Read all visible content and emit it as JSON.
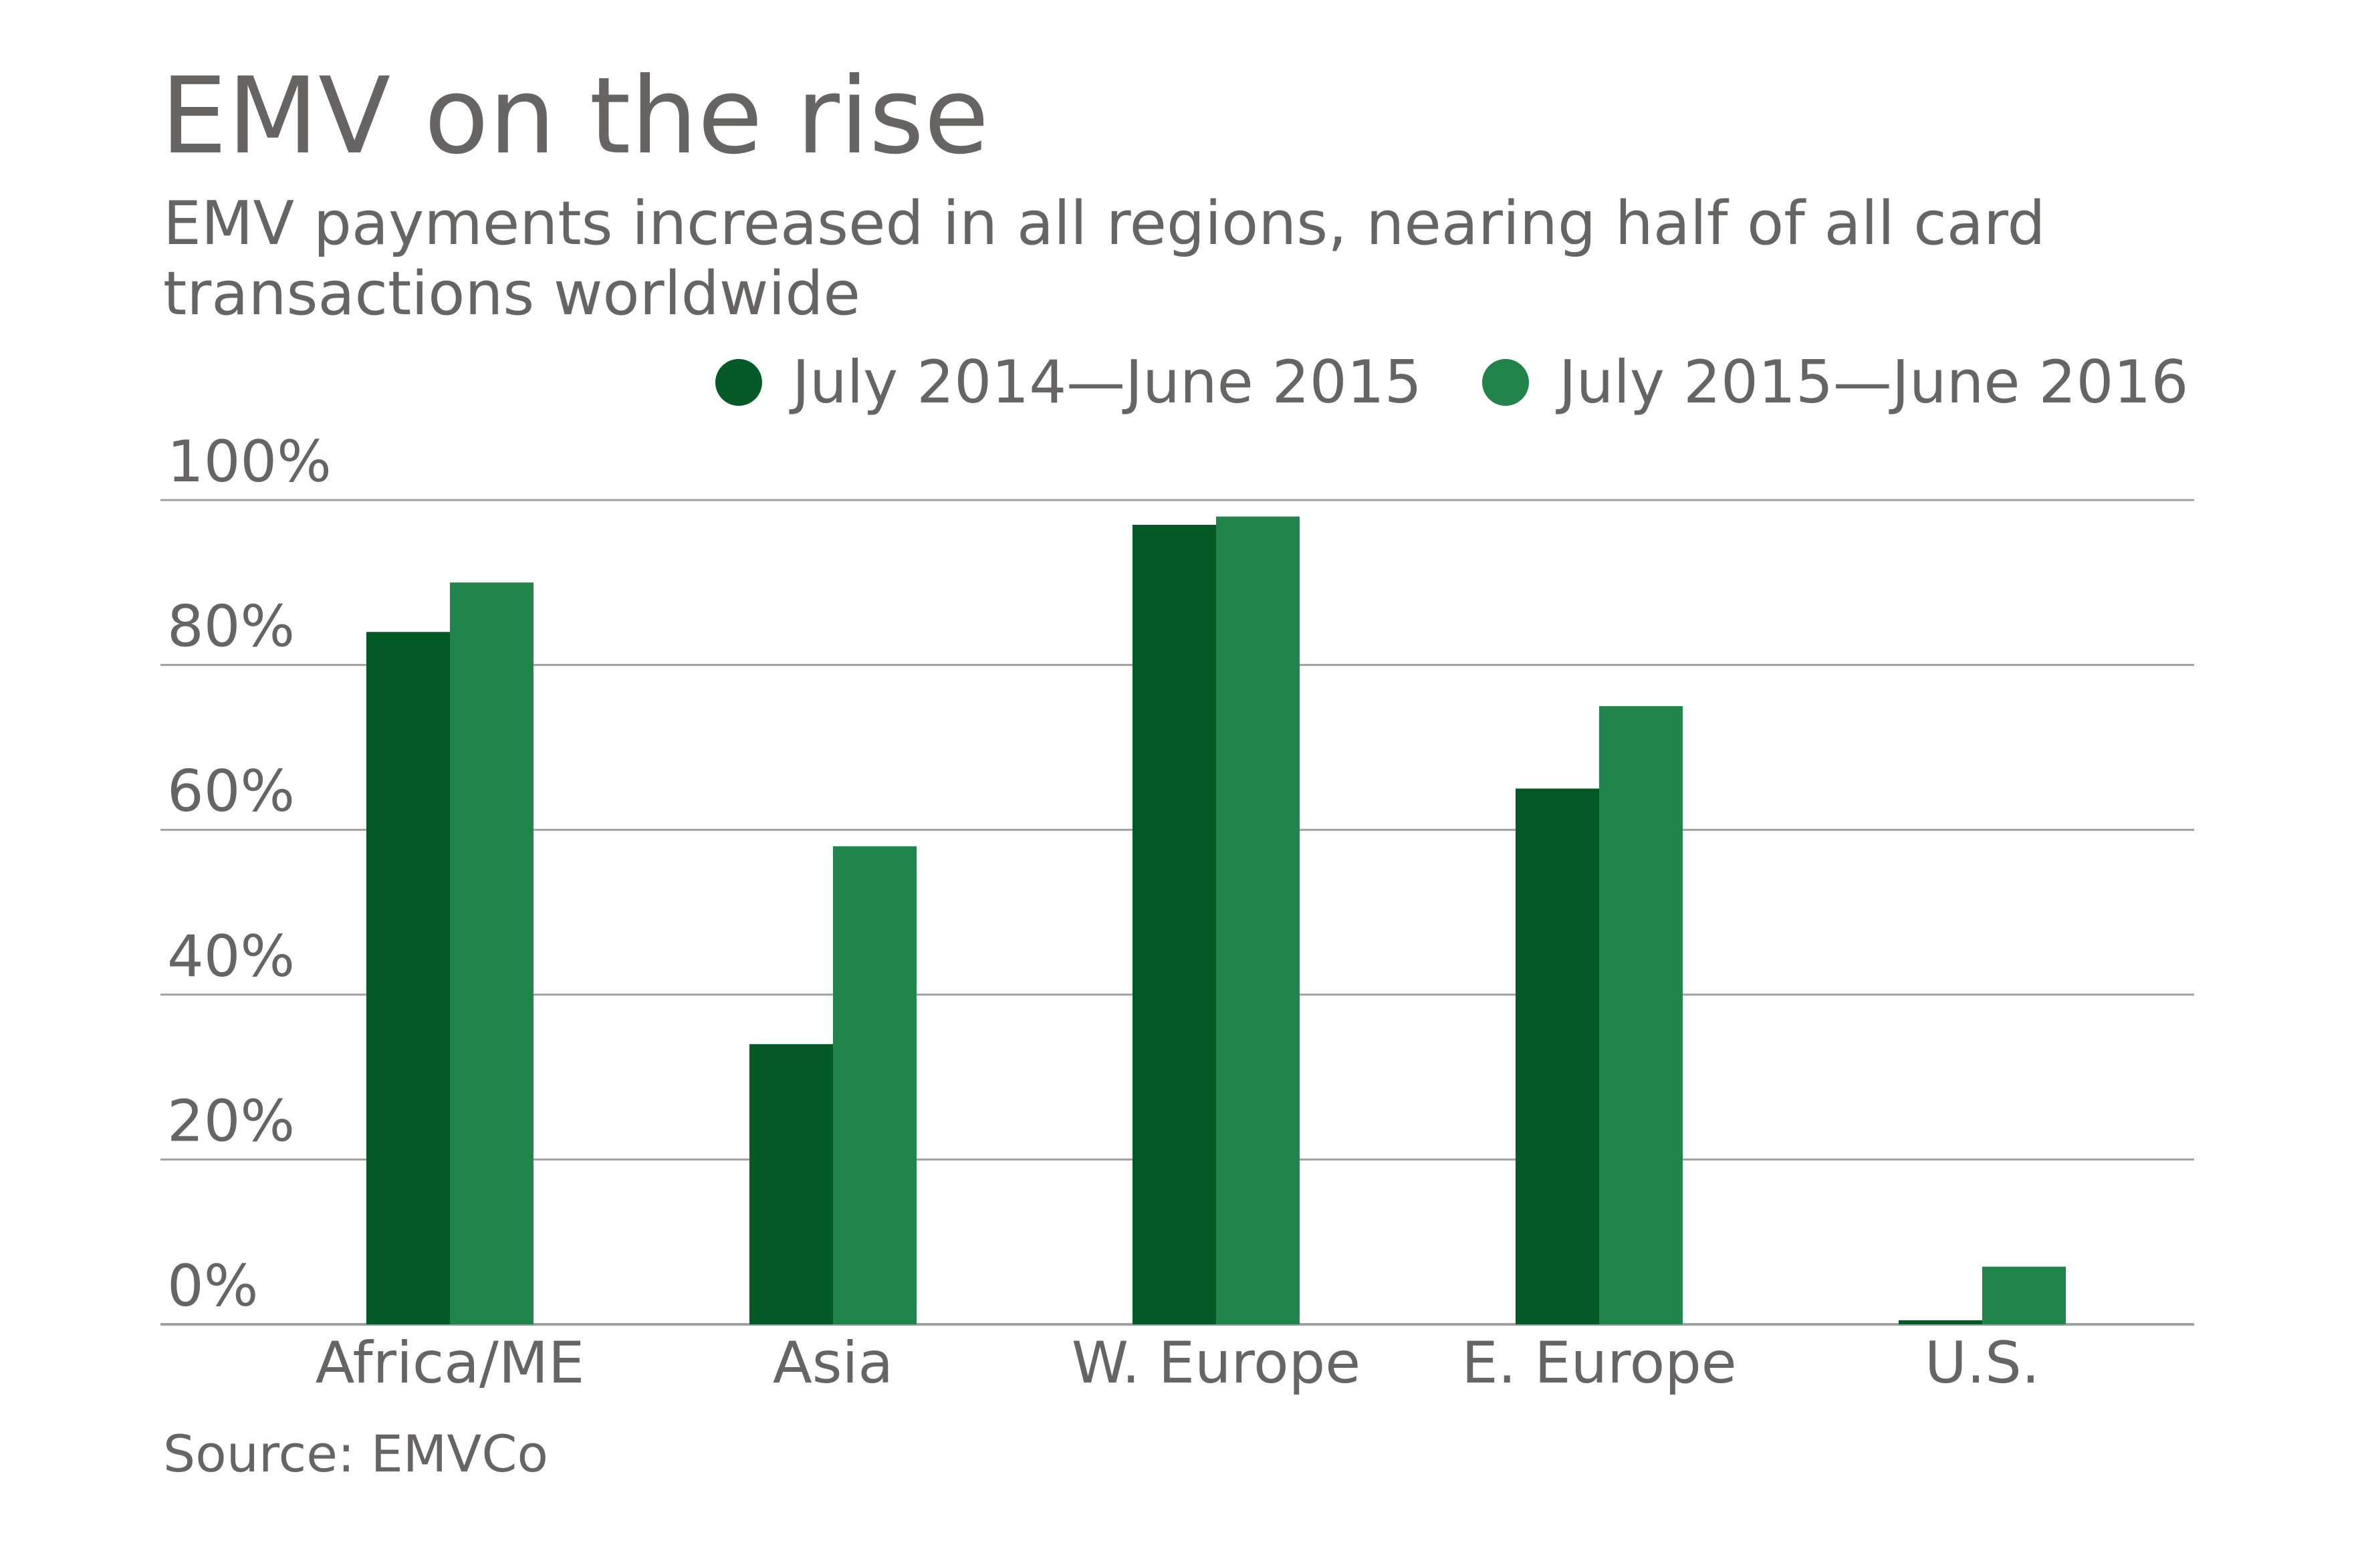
{
  "title": "EMV on the rise",
  "subtitle": "EMV payments increased in all regions, nearing half of all card transactions worldwide",
  "source": "Source: EMVCo",
  "colors": {
    "series1": "#035a27",
    "series2": "#21844a",
    "grid": "#a0a0a0",
    "text": "#676464"
  },
  "chart_data": {
    "type": "bar",
    "title": "EMV on the rise",
    "categories": [
      "Africa/ME",
      "Asia",
      "W. Europe",
      "E. Europe",
      "U.S."
    ],
    "series": [
      {
        "name": "July 2014—June 2015",
        "values": [
          84,
          34,
          97,
          65,
          0.5
        ]
      },
      {
        "name": "July 2015—June 2016",
        "values": [
          90,
          58,
          98,
          75,
          7
        ]
      }
    ],
    "ylim": [
      0,
      100
    ],
    "yticks": [
      0,
      20,
      40,
      60,
      80,
      100
    ],
    "ytick_labels": [
      "0%",
      "20%",
      "40%",
      "60%",
      "80%",
      "100%"
    ],
    "grid": true,
    "legend_placement": "top-right"
  }
}
